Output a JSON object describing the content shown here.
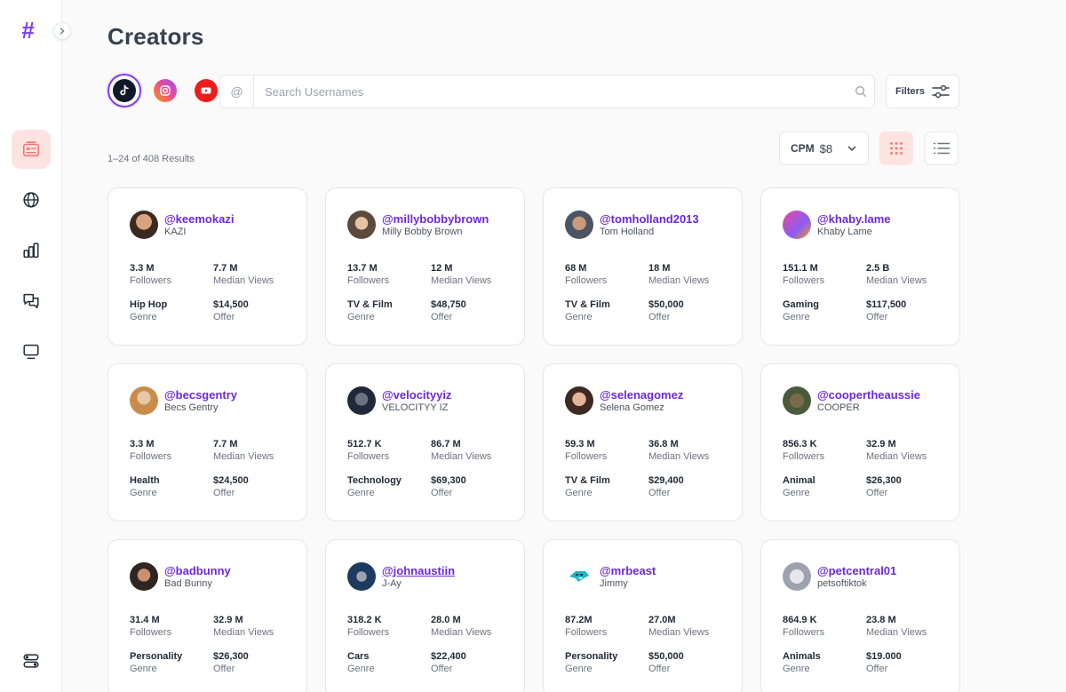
{
  "page": {
    "title": "Creators"
  },
  "platforms": [
    {
      "name": "tiktok",
      "icon": "tiktok-icon",
      "selected": true
    },
    {
      "name": "instagram",
      "icon": "instagram-icon",
      "selected": false
    },
    {
      "name": "youtube",
      "icon": "youtube-icon",
      "selected": false
    }
  ],
  "search": {
    "prefix": "@",
    "placeholder": "Search Usernames"
  },
  "filters": {
    "label": "Filters"
  },
  "results": {
    "text": "1–24 of 408 Results"
  },
  "cpm": {
    "label": "CPM",
    "value": "$8"
  },
  "colors": {
    "accent": "#7c3aed",
    "handle": "#6d28d9",
    "active_bg": "#fde4e1",
    "active_icon": "#f87171"
  },
  "creators": [
    {
      "handle": "@keemokazi",
      "name": "KAZI",
      "followers": "3.3 M",
      "followers_label": "Followers",
      "views": "7.7 M",
      "views_label": "Median Views",
      "genre": "Hip Hop",
      "genre_label": "Genre",
      "offer": "$14,500",
      "offer_label": "Offer"
    },
    {
      "handle": "@millybobbybrown",
      "name": "Milly Bobby Brown",
      "followers": "13.7 M",
      "followers_label": "Followers",
      "views": "12 M",
      "views_label": "Median Views",
      "genre": "TV & Film",
      "genre_label": "Genre",
      "offer": "$48,750",
      "offer_label": "Offer"
    },
    {
      "handle": "@tomholland2013",
      "name": "Tom Holland",
      "followers": "68 M",
      "followers_label": "Followers",
      "views": "18 M",
      "views_label": "Median Views",
      "genre": "TV & Film",
      "genre_label": "Genre",
      "offer": "$50,000",
      "offer_label": "Offer"
    },
    {
      "handle": "@khaby.lame",
      "name": "Khaby Lame",
      "followers": "151.1 M",
      "followers_label": "Followers",
      "views": "2.5 B",
      "views_label": "Median Views",
      "genre": "Gaming",
      "genre_label": "Genre",
      "offer": "$117,500",
      "offer_label": "Offer"
    },
    {
      "handle": "@becsgentry",
      "name": "Becs Gentry",
      "followers": "3.3 M",
      "followers_label": "Followers",
      "views": "7.7 M",
      "views_label": "Median Views",
      "genre": "Health",
      "genre_label": "Genre",
      "offer": "$24,500",
      "offer_label": "Offer"
    },
    {
      "handle": "@velocityyiz",
      "name": "VELOCITYY IZ",
      "followers": "512.7 K",
      "followers_label": "Followers",
      "views": "86.7 M",
      "views_label": "Median Views",
      "genre": "Technology",
      "genre_label": "Genre",
      "offer": "$69,300",
      "offer_label": "Offer"
    },
    {
      "handle": "@selenagomez",
      "name": "Selena Gomez",
      "followers": "59.3 M",
      "followers_label": "Followers",
      "views": "36.8 M",
      "views_label": "Median Views",
      "genre": "TV & Film",
      "genre_label": "Genre",
      "offer": "$29,400",
      "offer_label": "Offer"
    },
    {
      "handle": "@coopertheaussie",
      "name": "COOPER",
      "followers": "856.3 K",
      "followers_label": "Followers",
      "views": "32.9 M",
      "views_label": "Median Views",
      "genre": "Animal",
      "genre_label": "Genre",
      "offer": "$26,300",
      "offer_label": "Offer"
    },
    {
      "handle": "@badbunny",
      "name": "Bad Bunny",
      "followers": "31.4 M",
      "followers_label": "Followers",
      "views": "32.9 M",
      "views_label": "Median Views",
      "genre": "Personality",
      "genre_label": "Genre",
      "offer": "$26,300",
      "offer_label": "Offer"
    },
    {
      "handle": "@johnaustiin",
      "name": "J-Ay",
      "followers": "318.2 K",
      "followers_label": "Followers",
      "views": "28.0 M",
      "views_label": "Median Views",
      "genre": "Cars",
      "genre_label": "Genre",
      "offer": "$22,400",
      "offer_label": "Offer"
    },
    {
      "handle": "@mrbeast",
      "name": "Jimmy",
      "followers": "87.2M",
      "followers_label": "Followers",
      "views": "27.0M",
      "views_label": "Median Views",
      "genre": "Personality",
      "genre_label": "Genre",
      "offer": "$50,000",
      "offer_label": "Offer"
    },
    {
      "handle": "@petcentral01",
      "name": "petsoftiktok",
      "followers": "864.9 K",
      "followers_label": "Followers",
      "views": "23.8 M",
      "views_label": "Median Views",
      "genre": "Animals",
      "genre_label": "Genre",
      "offer": "$19.000",
      "offer_label": "Offer"
    }
  ]
}
